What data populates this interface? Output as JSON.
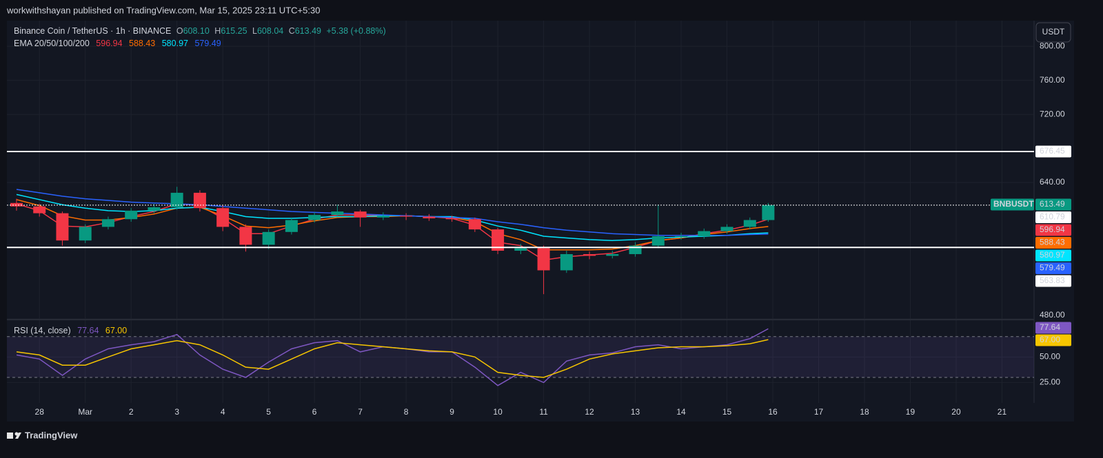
{
  "header": {
    "publisher": "workwithshayan published on TradingView.com, Mar 15, 2025 23:11 UTC+5:30"
  },
  "legend": {
    "symbol": "Binance Coin / TetherUS · 1h · BINANCE",
    "ohlc": [
      {
        "label": "O",
        "value": "608.10"
      },
      {
        "label": "H",
        "value": "615.25"
      },
      {
        "label": "L",
        "value": "608.04"
      },
      {
        "label": "C",
        "value": "613.49"
      }
    ],
    "change": "+5.38 (+0.88%)",
    "ema_title": "EMA 20/50/100/200",
    "rsi_title": "RSI (14, close)"
  },
  "footer": {
    "brand": "TradingView"
  },
  "chart_data": [
    {
      "type": "candlestick",
      "currency": "USDT",
      "symbol_badge": "BNBUSDT",
      "x": [
        -0.5,
        0,
        0.5,
        1,
        1.5,
        2,
        2.5,
        3,
        3.5,
        4,
        4.5,
        5,
        5.5,
        6,
        6.5,
        7,
        7.5,
        8,
        8.5,
        9,
        9.5,
        10,
        10.5,
        11,
        11.5,
        12,
        12.5,
        13,
        13.5,
        14,
        14.5,
        15,
        15.5,
        15.9
      ],
      "open": [
        616,
        612,
        604,
        572,
        588,
        597,
        607,
        611,
        628,
        610,
        588,
        567,
        582,
        596,
        602,
        606,
        599,
        601,
        600,
        598,
        597,
        585,
        560,
        563,
        537,
        556,
        554,
        556,
        566,
        577,
        577,
        583,
        588,
        596
      ],
      "high": [
        621,
        615,
        606,
        591,
        600,
        610,
        615,
        635,
        631,
        613,
        591,
        585,
        599,
        605,
        614,
        608,
        605,
        604,
        603,
        601,
        599,
        587,
        568,
        566,
        560,
        559,
        560,
        570,
        614,
        581,
        586,
        591,
        599,
        616
      ],
      "low": [
        607,
        600,
        566,
        569,
        585,
        594,
        604,
        608,
        606,
        583,
        559,
        562,
        579,
        593,
        600,
        588,
        596,
        596,
        595,
        594,
        582,
        556,
        556,
        509,
        534,
        550,
        551,
        553,
        563,
        573,
        574,
        580,
        585,
        594
      ],
      "close": [
        612,
        604,
        572,
        588,
        597,
        607,
        611,
        628,
        610,
        588,
        567,
        582,
        596,
        602,
        606,
        599,
        601,
        600,
        598,
        597,
        585,
        560,
        563,
        537,
        556,
        554,
        556,
        566,
        577,
        577,
        583,
        588,
        596,
        613.49
      ],
      "up_color": "#089981",
      "down_color": "#f23645",
      "series": [
        {
          "color": "#f23645",
          "values": [
            615,
            607,
            589,
            588,
            593,
            600,
            606,
            615,
            613,
            598,
            580,
            580,
            589,
            597,
            602,
            602,
            601,
            601,
            600,
            598,
            590,
            570,
            566,
            549,
            553,
            555,
            557,
            564,
            572,
            575,
            580,
            584,
            590,
            596.94
          ]
        },
        {
          "color": "#ff6d00",
          "values": [
            620,
            613,
            601,
            596,
            596,
            599,
            603,
            610,
            611,
            601,
            589,
            587,
            590,
            595,
            599,
            600,
            600,
            601,
            600,
            599,
            594,
            580,
            573,
            561,
            561,
            561,
            562,
            566,
            572,
            575,
            579,
            582,
            586,
            588.43
          ]
        },
        {
          "color": "#00e5ff",
          "values": [
            626,
            620,
            614,
            610,
            607,
            606,
            607,
            610,
            611,
            606,
            600,
            598,
            598,
            599,
            600,
            600,
            601,
            601,
            600,
            600,
            596,
            589,
            584,
            577,
            575,
            573,
            572,
            573,
            575,
            576,
            577,
            578,
            580,
            580.97
          ]
        },
        {
          "color": "#2962ff",
          "values": [
            632,
            628,
            624,
            621,
            619,
            617,
            616,
            615,
            614,
            612,
            610,
            608,
            606,
            605,
            604,
            603,
            602,
            601,
            600,
            599,
            598,
            594,
            591,
            587,
            584,
            582,
            580,
            579,
            578,
            578,
            578,
            578,
            579,
            579.49
          ]
        }
      ],
      "hlines": [
        676.45,
        563.83
      ],
      "marker": 610.79,
      "xlim": [
        -0.71,
        21.7
      ],
      "ylim": [
        480,
        830
      ],
      "yticks": [
        {
          "value": 480,
          "label": "480.00"
        },
        {
          "value": 640,
          "label": "640.00"
        },
        {
          "value": 720,
          "label": "720.00"
        },
        {
          "value": 760,
          "label": "760.00"
        },
        {
          "value": 800,
          "label": "800.00"
        }
      ],
      "grid": true
    },
    {
      "type": "line",
      "x": [
        -0.5,
        0,
        0.5,
        1,
        1.5,
        2,
        2.5,
        3,
        3.5,
        4,
        4.5,
        5,
        5.5,
        6,
        6.5,
        7,
        7.5,
        8,
        8.5,
        9,
        9.5,
        10,
        10.5,
        11,
        11.5,
        12,
        12.5,
        13,
        13.5,
        14,
        14.5,
        15,
        15.5,
        15.9
      ],
      "series": [
        {
          "color": "#7e57c2",
          "values": [
            52,
            48,
            32,
            48,
            58,
            62,
            65,
            72,
            52,
            38,
            30,
            45,
            58,
            64,
            66,
            55,
            60,
            58,
            55,
            55,
            40,
            22,
            35,
            25,
            46,
            52,
            54,
            60,
            62,
            58,
            60,
            62,
            68,
            77.64
          ]
        },
        {
          "color": "#f7c600",
          "values": [
            55,
            52,
            42,
            42,
            50,
            58,
            62,
            66,
            62,
            52,
            40,
            38,
            48,
            58,
            64,
            62,
            60,
            58,
            56,
            55,
            50,
            35,
            32,
            30,
            38,
            48,
            53,
            56,
            59,
            60,
            60,
            61,
            63,
            67.0
          ],
          "value_labels": [
            null,
            null,
            null,
            null,
            null,
            null,
            null,
            null,
            null,
            null,
            null,
            null,
            null,
            null,
            null,
            null,
            null,
            null,
            null,
            null,
            null,
            null,
            null,
            null,
            null,
            null,
            null,
            null,
            null,
            null,
            null,
            null,
            null,
            "67.00"
          ]
        }
      ],
      "bands": [
        30,
        70
      ],
      "xlim": [
        -0.71,
        21.7
      ],
      "ylim": [
        5,
        86
      ],
      "yticks": [
        {
          "value": 25,
          "label": "25.00"
        },
        {
          "value": 50,
          "label": "50.00"
        }
      ],
      "xticks": [
        {
          "value": 0,
          "label": "28"
        },
        {
          "value": 1,
          "label": "Mar"
        },
        {
          "value": 2,
          "label": "2"
        },
        {
          "value": 3,
          "label": "3"
        },
        {
          "value": 4,
          "label": "4"
        },
        {
          "value": 5,
          "label": "5"
        },
        {
          "value": 6,
          "label": "6"
        },
        {
          "value": 7,
          "label": "7"
        },
        {
          "value": 8,
          "label": "8"
        },
        {
          "value": 9,
          "label": "9"
        },
        {
          "value": 10,
          "label": "10"
        },
        {
          "value": 11,
          "label": "11"
        },
        {
          "value": 12,
          "label": "12"
        },
        {
          "value": 13,
          "label": "13"
        },
        {
          "value": 14,
          "label": "14"
        },
        {
          "value": 15,
          "label": "15"
        },
        {
          "value": 16,
          "label": "16"
        },
        {
          "value": 17,
          "label": "17"
        },
        {
          "value": 18,
          "label": "18"
        },
        {
          "value": 19,
          "label": "19"
        },
        {
          "value": 20,
          "label": "20"
        },
        {
          "value": 21,
          "label": "21"
        }
      ],
      "grid": true
    }
  ]
}
